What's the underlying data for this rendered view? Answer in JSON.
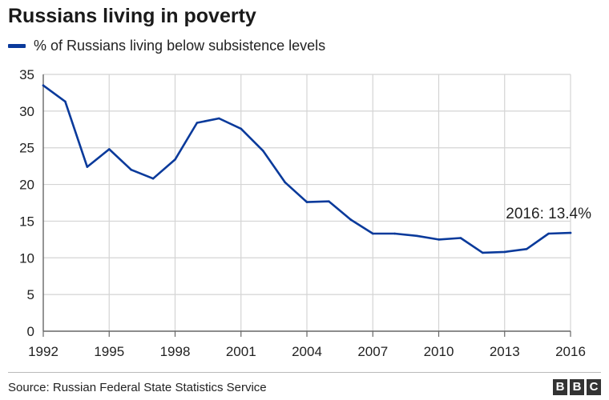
{
  "colors": {
    "series": "#0a3a9b",
    "grid": "#d4d4d4",
    "axis": "#666666",
    "text": "#222222"
  },
  "chart_data": {
    "type": "line",
    "title": "Russians living in poverty",
    "series": [
      {
        "name": "% of Russians living below subsistence levels",
        "x": [
          1992,
          1993,
          1994,
          1995,
          1996,
          1997,
          1998,
          1999,
          2000,
          2001,
          2002,
          2003,
          2004,
          2005,
          2006,
          2007,
          2008,
          2009,
          2010,
          2011,
          2012,
          2013,
          2014,
          2015,
          2016
        ],
        "values": [
          33.5,
          31.3,
          22.4,
          24.8,
          22.0,
          20.8,
          23.4,
          28.4,
          29.0,
          27.6,
          24.6,
          20.3,
          17.6,
          17.7,
          15.2,
          13.3,
          13.3,
          13.0,
          12.5,
          12.7,
          10.7,
          10.8,
          11.2,
          13.3,
          13.4
        ]
      }
    ],
    "xticks": [
      "1992",
      "1995",
      "1998",
      "2001",
      "2004",
      "2007",
      "2010",
      "2013",
      "2016"
    ],
    "yticks": [
      "0",
      "5",
      "10",
      "15",
      "20",
      "25",
      "30",
      "35"
    ],
    "xlim": [
      1992,
      2016
    ],
    "ylim": [
      0,
      35
    ],
    "xlabel": "",
    "ylabel": "",
    "grid": true,
    "annotation": "2016: 13.4%",
    "source": "Source: Russian Federal State Statistics Service"
  },
  "branding": {
    "letters": [
      "B",
      "B",
      "C"
    ]
  }
}
